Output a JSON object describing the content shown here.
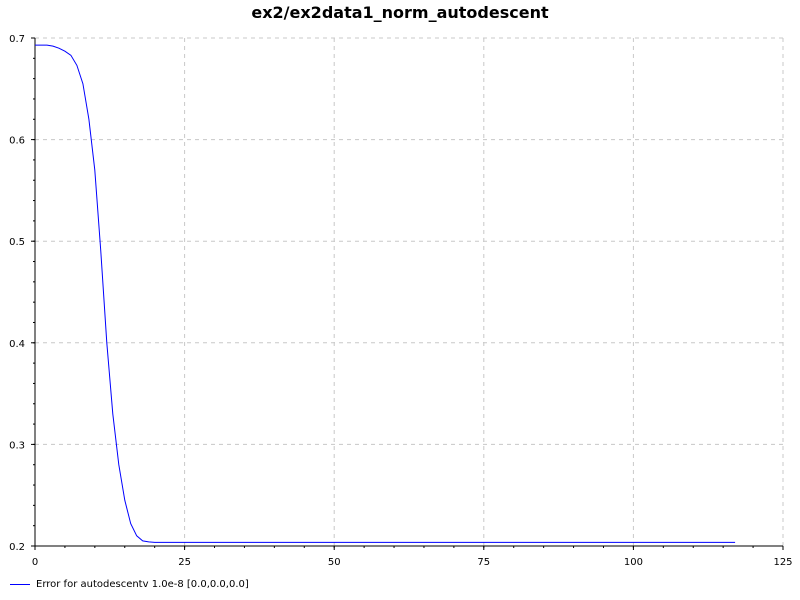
{
  "chart_data": {
    "type": "line",
    "title": "ex2/ex2data1_norm_autodescent",
    "xlabel": "",
    "ylabel": "",
    "xlim": [
      0,
      125
    ],
    "ylim": [
      0.2,
      0.7
    ],
    "xticks": [
      0,
      25,
      50,
      75,
      100,
      125
    ],
    "yticks": [
      0.2,
      0.3,
      0.4,
      0.5,
      0.6,
      0.7
    ],
    "grid": true,
    "legend_position": "bottom-left",
    "series": [
      {
        "name": "Error for autodescentv 1.0e-8 [0.0,0.0,0.0]",
        "color": "#0000ff",
        "x": [
          0,
          1,
          2,
          3,
          4,
          5,
          6,
          7,
          8,
          9,
          10,
          11,
          12,
          13,
          14,
          15,
          16,
          17,
          18,
          19,
          20,
          25,
          30,
          40,
          50,
          60,
          70,
          80,
          90,
          100,
          110,
          117
        ],
        "y": [
          0.693,
          0.693,
          0.693,
          0.692,
          0.69,
          0.687,
          0.683,
          0.673,
          0.655,
          0.62,
          0.57,
          0.49,
          0.4,
          0.33,
          0.28,
          0.245,
          0.222,
          0.21,
          0.205,
          0.204,
          0.2035,
          0.2035,
          0.2035,
          0.2035,
          0.2035,
          0.2035,
          0.2035,
          0.2035,
          0.2035,
          0.2035,
          0.2035,
          0.2035
        ]
      }
    ]
  }
}
